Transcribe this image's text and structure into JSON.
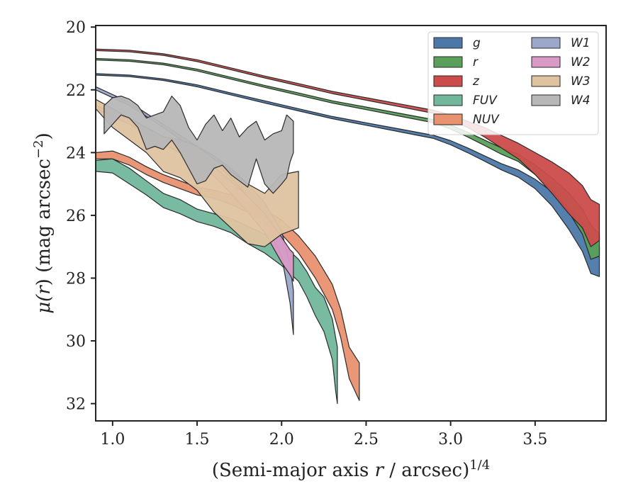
{
  "chart_data": {
    "type": "area",
    "xlabel": "(Semi-major axis r / arcsec)1/4",
    "xlabel_parts": {
      "main_before": "(Semi-major axis ",
      "main_var": "r",
      "main_after": " / arcsec)",
      "sup": "1/4"
    },
    "ylabel": "μ(r) (mag arcsec−2)",
    "ylabel_parts": {
      "mu": "μ(",
      "var": "r",
      "rest": ") (mag arcsec",
      "sup": "−2",
      "end": ")"
    },
    "xlim": [
      0.9,
      3.92
    ],
    "ylim": [
      32.55,
      19.95
    ],
    "y_inverted": true,
    "xticks": [
      1.0,
      1.5,
      2.0,
      2.5,
      3.0,
      3.5
    ],
    "xtick_labels": [
      "1.0",
      "1.5",
      "2.0",
      "2.5",
      "3.0",
      "3.5"
    ],
    "yticks": [
      20,
      22,
      24,
      26,
      28,
      30,
      32
    ],
    "ytick_labels": [
      "20",
      "22",
      "24",
      "26",
      "28",
      "30",
      "32"
    ],
    "grid": false,
    "legend_position": "top-right",
    "legend_columns": 2,
    "series": [
      {
        "name": "g",
        "color": "#4c78a8",
        "x": [
          0.9,
          1.1,
          1.3,
          1.5,
          1.7,
          1.9,
          2.1,
          2.3,
          2.5,
          2.7,
          2.9,
          3.0,
          3.1,
          3.2,
          3.3,
          3.4,
          3.5,
          3.6,
          3.7,
          3.78,
          3.83,
          3.88
        ],
        "y_upper": [
          21.48,
          21.53,
          21.65,
          21.84,
          22.1,
          22.35,
          22.6,
          22.85,
          23.05,
          23.25,
          23.45,
          23.62,
          23.85,
          24.1,
          24.35,
          24.55,
          24.85,
          25.25,
          25.75,
          26.2,
          26.7,
          27.0
        ],
        "y_lower": [
          21.53,
          21.58,
          21.7,
          21.9,
          22.16,
          22.42,
          22.67,
          22.92,
          23.13,
          23.34,
          23.55,
          23.75,
          24.0,
          24.27,
          24.55,
          24.78,
          25.15,
          25.7,
          26.45,
          27.15,
          27.85,
          27.95
        ]
      },
      {
        "name": "r",
        "color": "#5aa05a",
        "x": [
          0.9,
          1.1,
          1.3,
          1.5,
          1.7,
          1.9,
          2.1,
          2.3,
          2.5,
          2.7,
          2.9,
          3.0,
          3.1,
          3.2,
          3.3,
          3.4,
          3.5,
          3.6,
          3.7,
          3.78,
          3.83,
          3.88
        ],
        "y_upper": [
          21.0,
          21.04,
          21.15,
          21.34,
          21.6,
          21.86,
          22.1,
          22.35,
          22.55,
          22.75,
          22.95,
          23.12,
          23.35,
          23.6,
          23.85,
          24.05,
          24.4,
          24.8,
          25.3,
          25.8,
          26.3,
          26.6
        ],
        "y_lower": [
          21.05,
          21.09,
          21.2,
          21.4,
          21.66,
          21.92,
          22.17,
          22.42,
          22.63,
          22.84,
          23.05,
          23.25,
          23.5,
          23.77,
          24.05,
          24.28,
          24.7,
          25.2,
          25.9,
          26.6,
          27.4,
          27.3
        ]
      },
      {
        "name": "z",
        "color": "#cc4c4c",
        "x": [
          0.9,
          1.1,
          1.3,
          1.5,
          1.7,
          1.9,
          2.1,
          2.3,
          2.5,
          2.7,
          2.9,
          3.0,
          3.1,
          3.2,
          3.3,
          3.4,
          3.5,
          3.6,
          3.7,
          3.78,
          3.83,
          3.88
        ],
        "y_upper": [
          20.7,
          20.74,
          20.85,
          21.04,
          21.3,
          21.56,
          21.8,
          22.05,
          22.25,
          22.45,
          22.65,
          22.8,
          23.0,
          23.2,
          23.45,
          23.7,
          24.0,
          24.3,
          24.65,
          25.05,
          25.5,
          25.65
        ],
        "y_lower": [
          20.75,
          20.79,
          20.9,
          21.1,
          21.36,
          21.62,
          21.87,
          22.12,
          22.33,
          22.54,
          22.75,
          22.95,
          23.2,
          23.5,
          23.85,
          24.2,
          24.7,
          25.3,
          25.95,
          26.4,
          27.0,
          26.8
        ]
      },
      {
        "name": "FUV",
        "color": "#72b79c",
        "x": [
          0.9,
          1.0,
          1.1,
          1.2,
          1.3,
          1.4,
          1.5,
          1.6,
          1.7,
          1.8,
          1.9,
          2.0,
          2.1,
          2.15,
          2.2,
          2.25,
          2.3,
          2.32,
          2.33
        ],
        "y_upper": [
          24.25,
          24.2,
          24.5,
          24.9,
          25.3,
          25.5,
          25.8,
          25.95,
          26.1,
          26.35,
          26.6,
          26.9,
          27.4,
          27.8,
          28.3,
          28.6,
          29.3,
          29.9,
          30.2
        ],
        "y_lower": [
          24.6,
          24.65,
          25.0,
          25.35,
          25.75,
          25.95,
          26.2,
          26.35,
          26.55,
          26.9,
          27.2,
          27.6,
          28.1,
          28.6,
          29.2,
          29.7,
          30.6,
          31.6,
          32.0
        ]
      },
      {
        "name": "NUV",
        "color": "#e8916f",
        "x": [
          0.9,
          1.0,
          1.1,
          1.2,
          1.3,
          1.4,
          1.5,
          1.6,
          1.7,
          1.8,
          1.9,
          2.0,
          2.1,
          2.2,
          2.3,
          2.35,
          2.4,
          2.46
        ],
        "y_upper": [
          24.0,
          23.95,
          24.15,
          24.45,
          24.7,
          24.9,
          25.1,
          25.2,
          25.35,
          25.55,
          25.8,
          26.15,
          26.65,
          27.3,
          28.2,
          29.0,
          30.2,
          30.7
        ],
        "y_lower": [
          24.2,
          24.2,
          24.4,
          24.7,
          24.95,
          25.15,
          25.35,
          25.45,
          25.65,
          25.9,
          26.2,
          26.6,
          27.2,
          28.0,
          29.0,
          29.9,
          31.2,
          31.9
        ]
      },
      {
        "name": "W1",
        "color": "#9ba8c9",
        "x": [
          0.9,
          1.1,
          1.3,
          1.5,
          1.6,
          1.7,
          1.8,
          1.9,
          2.0,
          2.05,
          2.07
        ],
        "y_upper": [
          21.9,
          22.4,
          23.1,
          23.8,
          24.1,
          24.5,
          25.0,
          25.6,
          26.5,
          27.6,
          28.4
        ],
        "y_lower": [
          22.0,
          22.5,
          23.2,
          23.95,
          24.3,
          24.8,
          25.4,
          26.2,
          27.3,
          28.8,
          29.8
        ]
      },
      {
        "name": "W2",
        "color": "#d99ac7",
        "x": [
          0.9,
          1.1,
          1.3,
          1.5,
          1.6,
          1.7,
          1.8,
          1.9,
          2.0,
          2.05,
          2.07
        ],
        "y_upper": [
          22.5,
          22.95,
          23.5,
          24.1,
          24.45,
          24.9,
          25.4,
          25.95,
          26.7,
          27.1,
          27.2
        ],
        "y_lower": [
          22.6,
          23.1,
          23.7,
          24.35,
          24.75,
          25.3,
          25.9,
          26.55,
          27.5,
          27.9,
          28.1
        ]
      },
      {
        "name": "W3",
        "color": "#dfc3a0",
        "x": [
          0.9,
          1.0,
          1.1,
          1.2,
          1.3,
          1.4,
          1.5,
          1.6,
          1.7,
          1.8,
          1.9,
          2.0,
          2.1
        ],
        "y_upper": [
          22.3,
          22.6,
          22.9,
          23.2,
          23.5,
          23.6,
          23.8,
          24.2,
          24.6,
          25.0,
          25.3,
          24.7,
          24.6
        ],
        "y_lower": [
          22.6,
          23.2,
          23.6,
          24.0,
          24.6,
          24.8,
          25.2,
          25.9,
          26.4,
          26.9,
          27.0,
          26.6,
          26.4
        ]
      },
      {
        "name": "W4",
        "color": "#b7b7b7",
        "x": [
          0.95,
          1.0,
          1.05,
          1.1,
          1.15,
          1.2,
          1.25,
          1.3,
          1.35,
          1.4,
          1.45,
          1.5,
          1.55,
          1.6,
          1.65,
          1.7,
          1.75,
          1.8,
          1.85,
          1.9,
          1.95,
          2.0,
          2.03,
          2.05,
          2.07
        ],
        "y_upper": [
          22.5,
          22.25,
          22.2,
          22.3,
          22.5,
          22.9,
          22.8,
          22.7,
          22.2,
          22.5,
          23.2,
          23.6,
          23.1,
          22.8,
          23.3,
          22.9,
          23.5,
          23.2,
          23.0,
          23.6,
          23.4,
          23.3,
          22.8,
          22.9,
          23.0
        ],
        "y_lower": [
          23.4,
          23.1,
          22.8,
          22.9,
          23.2,
          23.9,
          23.8,
          23.9,
          23.6,
          24.0,
          24.5,
          25.0,
          24.9,
          24.5,
          24.4,
          24.7,
          24.9,
          25.1,
          24.2,
          25.0,
          25.3,
          25.0,
          24.8,
          24.3,
          24.0
        ]
      }
    ]
  }
}
